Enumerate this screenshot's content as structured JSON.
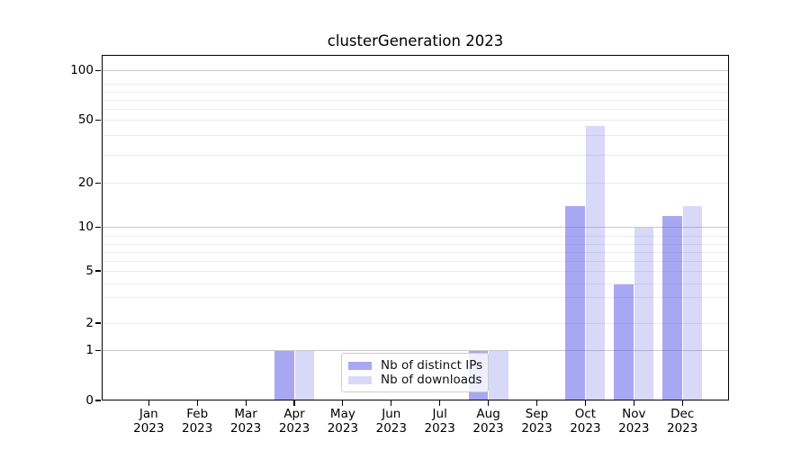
{
  "chart_data": {
    "type": "bar",
    "title": "clusterGeneration 2023",
    "categories": [
      "Jan",
      "Feb",
      "Mar",
      "Apr",
      "May",
      "Jun",
      "Jul",
      "Aug",
      "Sep",
      "Oct",
      "Nov",
      "Dec"
    ],
    "category_year": "2023",
    "series": [
      {
        "name": "Nb of distinct IPs",
        "color": "rgba(90,90,230,0.53)",
        "values": [
          0,
          0,
          0,
          1,
          0,
          0,
          0,
          1,
          0,
          14,
          4,
          12
        ]
      },
      {
        "name": "Nb of downloads",
        "color": "rgba(90,90,230,0.24)",
        "values": [
          0,
          0,
          0,
          1,
          0,
          0,
          0,
          1,
          0,
          46,
          10,
          14
        ]
      }
    ],
    "xlabel": "",
    "ylabel": "",
    "y_axis": {
      "scale": "log-like",
      "tick_labels": [
        0,
        1,
        2,
        5,
        10,
        20,
        50,
        100
      ],
      "major_gridlines": [
        1,
        10,
        100
      ],
      "minor_gridlines": [
        2,
        3,
        4,
        5,
        6,
        7,
        8,
        9,
        20,
        30,
        40,
        50,
        60,
        70,
        80,
        90
      ],
      "range_top": 130
    },
    "grid": "horizontal",
    "legend_position": "inside-bottom-center",
    "colors": {
      "bar_distinct_ips": "#a7a7f2",
      "bar_downloads": "#d8d8f9",
      "major_grid": "#c9c9c9",
      "minor_grid": "#ececec",
      "spine": "#000000",
      "background": "#ffffff"
    }
  }
}
